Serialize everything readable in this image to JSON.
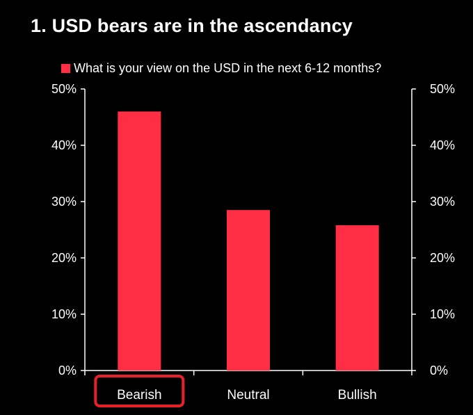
{
  "chart_data": {
    "type": "bar",
    "title": "1. USD bears are in the ascendancy",
    "categories": [
      "Bearish",
      "Neutral",
      "Bullish"
    ],
    "series": [
      {
        "name": "What is your view on the USD in the next 6-12 months?",
        "values": [
          46,
          28.5,
          25.8
        ]
      }
    ],
    "ylim": [
      0,
      50
    ],
    "yticks": [
      "0%",
      "10%",
      "20%",
      "30%",
      "40%",
      "50%"
    ],
    "secondary_yaxis": true,
    "grid": false,
    "legend_position": "top-left",
    "highlighted_category": "Bearish",
    "colors": {
      "bar": "#ff2e45",
      "highlight_box": "#e8202a",
      "background": "#000000",
      "axis": "#ffffff"
    }
  }
}
